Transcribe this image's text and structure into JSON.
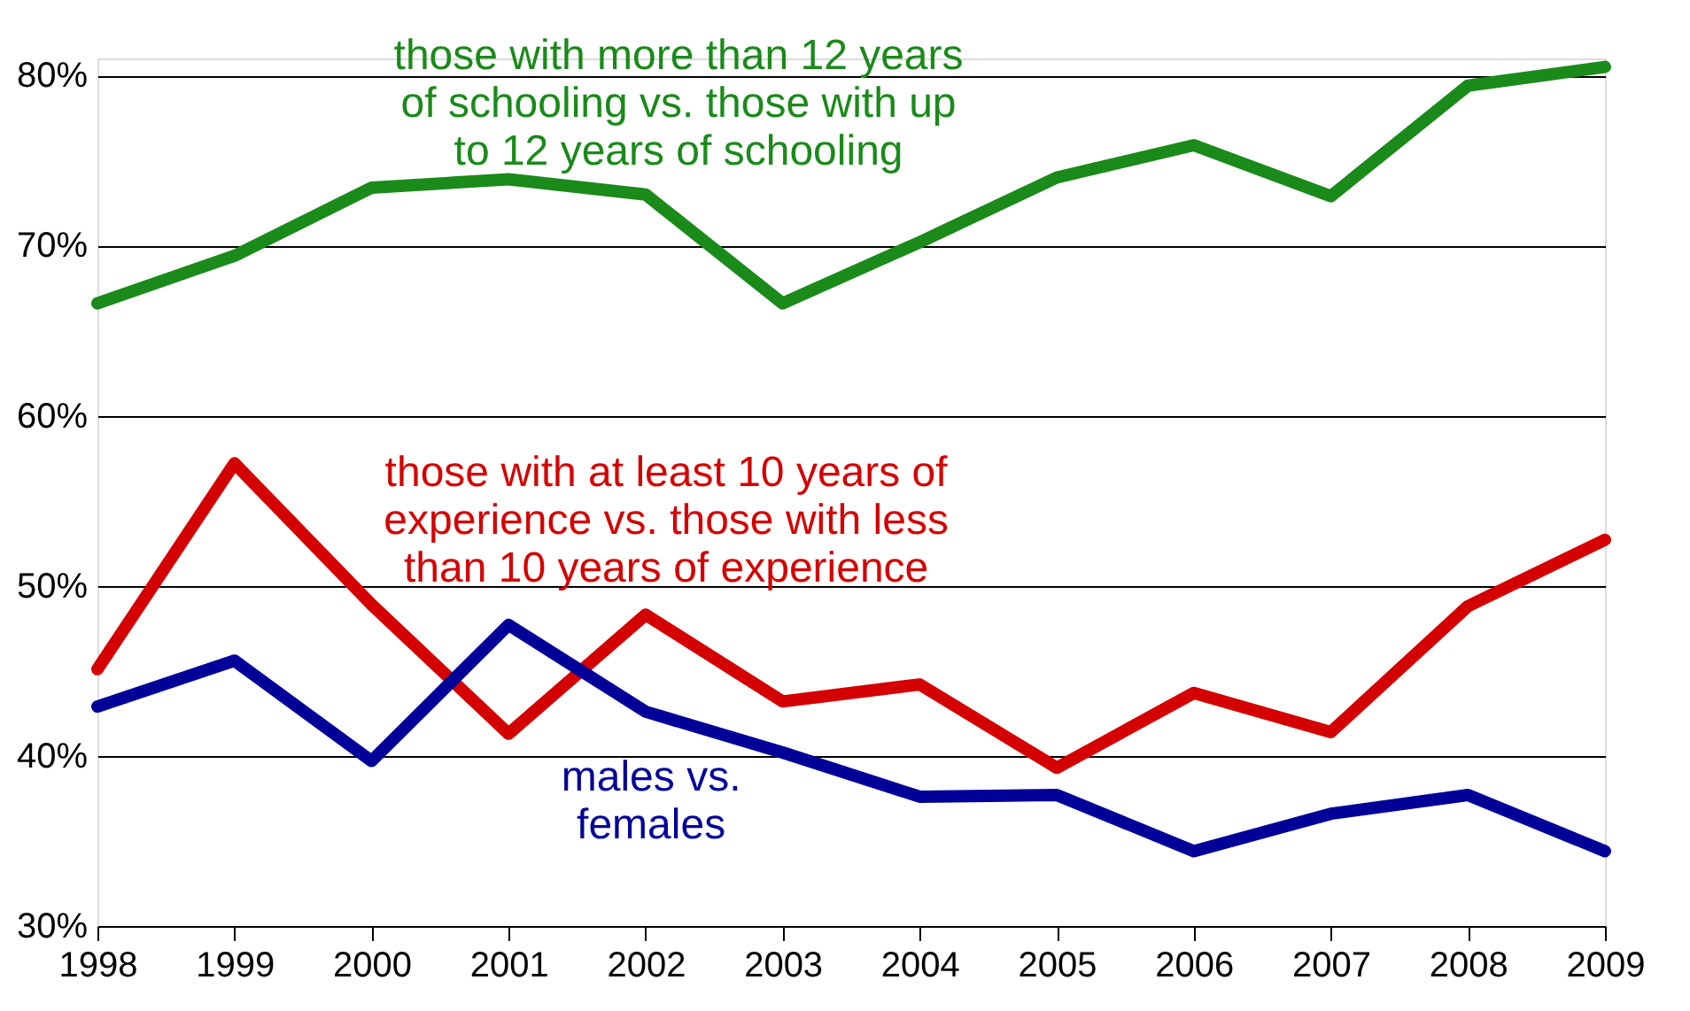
{
  "chart_data": {
    "type": "line",
    "x": [
      1998,
      1999,
      2000,
      2001,
      2002,
      2003,
      2004,
      2005,
      2006,
      2007,
      2008,
      2009
    ],
    "series": [
      {
        "name": "those with more than 12 years of schooling vs. those with up to 12 years of schooling",
        "color": "#1a8a1a",
        "values": [
          66.6,
          69.4,
          73.4,
          73.9,
          73.0,
          66.6,
          70.2,
          74.0,
          75.9,
          72.9,
          79.4,
          80.5
        ]
      },
      {
        "name": "those with at least 10 years of experience vs. those with less than 10 years of experience",
        "color": "#d40000",
        "values": [
          45.1,
          57.2,
          48.9,
          41.3,
          48.3,
          43.2,
          44.2,
          39.3,
          43.7,
          41.4,
          48.8,
          52.7
        ]
      },
      {
        "name": "males vs. females",
        "color": "#000099",
        "values": [
          42.9,
          45.6,
          39.7,
          47.7,
          42.6,
          40.2,
          37.6,
          37.7,
          34.4,
          36.6,
          37.7,
          34.4
        ]
      }
    ],
    "xlim": [
      1998,
      2009
    ],
    "xticks": [
      1998,
      1999,
      2000,
      2001,
      2002,
      2003,
      2004,
      2005,
      2006,
      2007,
      2008,
      2009
    ],
    "ylim": [
      30,
      81
    ],
    "yticks": [
      {
        "value": 30,
        "label": "30%"
      },
      {
        "value": 40,
        "label": "40%"
      },
      {
        "value": 50,
        "label": "50%"
      },
      {
        "value": 60,
        "label": "60%"
      },
      {
        "value": 70,
        "label": "70%"
      },
      {
        "value": 80,
        "label": "80%"
      }
    ],
    "grid": "y",
    "marker": "none",
    "line_style": "solid"
  }
}
